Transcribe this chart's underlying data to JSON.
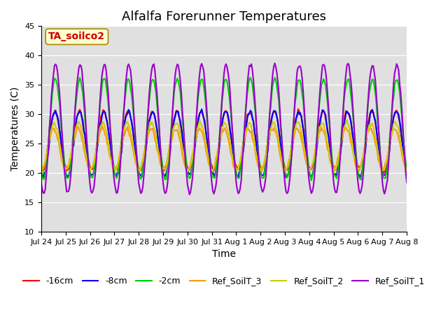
{
  "title": "Alfalfa Forerunner Temperatures",
  "xlabel": "Time",
  "ylabel": "Temperatures (C)",
  "ylim": [
    10,
    45
  ],
  "annotation_text": "TA_soilco2",
  "annotation_bg": "#ffffcc",
  "annotation_fg": "#cc0000",
  "annotation_edge": "#aa8800",
  "plot_bg": "#e0e0e0",
  "lines": {
    "-16cm": {
      "color": "#ff0000",
      "lw": 1.5
    },
    "-8cm": {
      "color": "#0000ff",
      "lw": 1.5
    },
    "-2cm": {
      "color": "#00cc00",
      "lw": 1.5
    },
    "Ref_SoilT_3": {
      "color": "#ff9900",
      "lw": 1.5
    },
    "Ref_SoilT_2": {
      "color": "#cccc00",
      "lw": 1.5
    },
    "Ref_SoilT_1": {
      "color": "#9900cc",
      "lw": 1.5
    }
  },
  "xtick_labels": [
    "Jul 24",
    "Jul 25",
    "Jul 26",
    "Jul 27",
    "Jul 28",
    "Jul 29",
    "Jul 30",
    "Jul 31",
    "Aug 1",
    "Aug 2",
    "Aug 3",
    "Aug 4",
    "Aug 5",
    "Aug 6",
    "Aug 7",
    "Aug 8"
  ],
  "title_fontsize": 13,
  "axis_fontsize": 10,
  "tick_fontsize": 8,
  "legend_fontsize": 9
}
